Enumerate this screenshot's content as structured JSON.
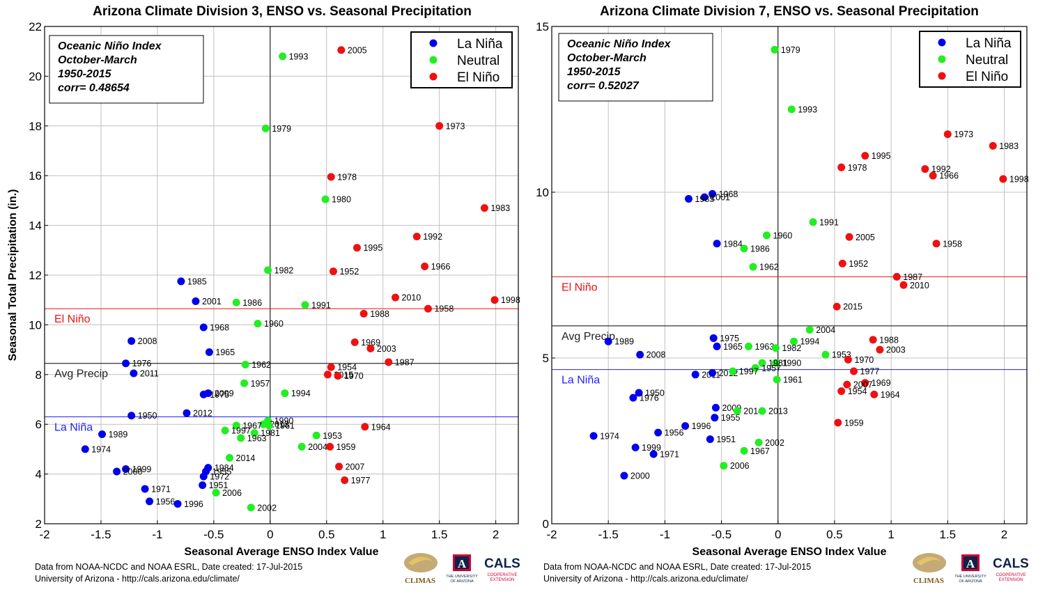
{
  "chart_data": [
    {
      "type": "scatter",
      "title": "Arizona Climate Division 3, ENSO vs. Seasonal Precipitation",
      "xlabel": "Seasonal Average ENSO Index Value",
      "ylabel": "Seasonal Total Precipitation (in.)",
      "xlim": [
        -2,
        2.2
      ],
      "ylim": [
        2,
        22
      ],
      "xticks": [
        "-2",
        "-1.5",
        "-1",
        "-0.5",
        "0",
        "0.5",
        "1",
        "1.5",
        "2"
      ],
      "xtick_values": [
        -2,
        -1.5,
        -1,
        -0.5,
        0,
        0.5,
        1,
        1.5,
        2
      ],
      "yticks": [
        "2",
        "4",
        "6",
        "8",
        "10",
        "12",
        "14",
        "16",
        "18",
        "20",
        "22"
      ],
      "ytick_values": [
        2,
        4,
        6,
        8,
        10,
        12,
        14,
        16,
        18,
        20,
        22
      ],
      "grid": true,
      "info_box": [
        "Oceanic Niño Index",
        "October-March",
        "1950-2015",
        "corr= 0.48654"
      ],
      "legend": {
        "position": "top-right",
        "entries": [
          {
            "name": "La Niña",
            "color": "#0000ee"
          },
          {
            "name": "Neutral",
            "color": "#22ee22"
          },
          {
            "name": "El Niño",
            "color": "#ee1111"
          }
        ]
      },
      "reference_lines": [
        {
          "label": "El Niño",
          "y": 10.65,
          "color": "#ee1111"
        },
        {
          "label": "Avg Precip",
          "y": 8.45,
          "color": "#000000"
        },
        {
          "label": "La Niña",
          "y": 6.3,
          "color": "#2222ee"
        }
      ],
      "series": [
        {
          "name": "La Niña",
          "color": "#0000ee",
          "points": [
            {
              "year": "1985",
              "x": -0.79,
              "y": 11.75
            },
            {
              "year": "2001",
              "x": -0.66,
              "y": 10.95
            },
            {
              "year": "1968",
              "x": -0.59,
              "y": 9.9
            },
            {
              "year": "2008",
              "x": -1.23,
              "y": 9.35
            },
            {
              "year": "1965",
              "x": -0.54,
              "y": 8.9
            },
            {
              "year": "1976",
              "x": -1.28,
              "y": 8.45
            },
            {
              "year": "2011",
              "x": -1.21,
              "y": 8.05
            },
            {
              "year": "2009",
              "x": -0.55,
              "y": 7.25
            },
            {
              "year": "1975",
              "x": -0.59,
              "y": 7.2
            },
            {
              "year": "1950",
              "x": -1.23,
              "y": 6.35
            },
            {
              "year": "2012",
              "x": -0.74,
              "y": 6.45
            },
            {
              "year": "1989",
              "x": -1.49,
              "y": 5.6
            },
            {
              "year": "1974",
              "x": -1.64,
              "y": 5.0
            },
            {
              "year": "1999",
              "x": -1.28,
              "y": 4.2
            },
            {
              "year": "2000",
              "x": -1.36,
              "y": 4.1
            },
            {
              "year": "1984",
              "x": -0.55,
              "y": 4.25
            },
            {
              "year": "1955",
              "x": -0.57,
              "y": 4.1
            },
            {
              "year": "1972",
              "x": -0.59,
              "y": 3.9
            },
            {
              "year": "1951",
              "x": -0.6,
              "y": 3.55
            },
            {
              "year": "1971",
              "x": -1.11,
              "y": 3.4
            },
            {
              "year": "1956",
              "x": -1.07,
              "y": 2.9
            },
            {
              "year": "1996",
              "x": -0.82,
              "y": 2.8
            }
          ]
        },
        {
          "name": "Neutral",
          "color": "#22ee22",
          "points": [
            {
              "year": "1993",
              "x": 0.11,
              "y": 20.8
            },
            {
              "year": "1979",
              "x": -0.04,
              "y": 17.9
            },
            {
              "year": "1980",
              "x": 0.49,
              "y": 15.05
            },
            {
              "year": "1982",
              "x": -0.02,
              "y": 12.2
            },
            {
              "year": "1986",
              "x": -0.3,
              "y": 10.9
            },
            {
              "year": "1991",
              "x": 0.31,
              "y": 10.8
            },
            {
              "year": "1960",
              "x": -0.11,
              "y": 10.05
            },
            {
              "year": "1962",
              "x": -0.22,
              "y": 8.4
            },
            {
              "year": "1957",
              "x": -0.23,
              "y": 7.65
            },
            {
              "year": "1994",
              "x": 0.13,
              "y": 7.25
            },
            {
              "year": "1990",
              "x": -0.02,
              "y": 6.15
            },
            {
              "year": "2013",
              "x": -0.06,
              "y": 6.0
            },
            {
              "year": "1961",
              "x": -0.01,
              "y": 5.95
            },
            {
              "year": "1967",
              "x": -0.3,
              "y": 5.95
            },
            {
              "year": "1997",
              "x": -0.4,
              "y": 5.75
            },
            {
              "year": "1981",
              "x": -0.14,
              "y": 5.65
            },
            {
              "year": "1963",
              "x": -0.26,
              "y": 5.45
            },
            {
              "year": "1953",
              "x": 0.41,
              "y": 5.55
            },
            {
              "year": "2004",
              "x": 0.28,
              "y": 5.1
            },
            {
              "year": "2014",
              "x": -0.36,
              "y": 4.65
            },
            {
              "year": "2006",
              "x": -0.48,
              "y": 3.25
            },
            {
              "year": "2002",
              "x": -0.17,
              "y": 2.65
            }
          ]
        },
        {
          "name": "El Niño",
          "color": "#ee1111",
          "points": [
            {
              "year": "2005",
              "x": 0.63,
              "y": 21.05
            },
            {
              "year": "1973",
              "x": 1.5,
              "y": 18.0
            },
            {
              "year": "1978",
              "x": 0.54,
              "y": 15.95
            },
            {
              "year": "1983",
              "x": 1.9,
              "y": 14.7
            },
            {
              "year": "1992",
              "x": 1.3,
              "y": 13.55
            },
            {
              "year": "1995",
              "x": 0.77,
              "y": 13.1
            },
            {
              "year": "1966",
              "x": 1.37,
              "y": 12.35
            },
            {
              "year": "1952",
              "x": 0.56,
              "y": 12.15
            },
            {
              "year": "2010",
              "x": 1.11,
              "y": 11.1
            },
            {
              "year": "1998",
              "x": 1.99,
              "y": 11.0
            },
            {
              "year": "1958",
              "x": 1.4,
              "y": 10.65
            },
            {
              "year": "1988",
              "x": 0.83,
              "y": 10.45
            },
            {
              "year": "1969",
              "x": 0.75,
              "y": 9.3
            },
            {
              "year": "2003",
              "x": 0.89,
              "y": 9.05
            },
            {
              "year": "1987",
              "x": 1.05,
              "y": 8.5
            },
            {
              "year": "1954",
              "x": 0.54,
              "y": 8.3
            },
            {
              "year": "2015",
              "x": 0.51,
              "y": 8.0
            },
            {
              "year": "1970",
              "x": 0.6,
              "y": 7.95
            },
            {
              "year": "1964",
              "x": 0.84,
              "y": 5.9
            },
            {
              "year": "1959",
              "x": 0.53,
              "y": 5.1
            },
            {
              "year": "2007",
              "x": 0.61,
              "y": 4.3
            },
            {
              "year": "1977",
              "x": 0.66,
              "y": 3.75
            }
          ]
        }
      ]
    },
    {
      "type": "scatter",
      "title": "Arizona Climate Division 7, ENSO vs. Seasonal Precipitation",
      "xlabel": "Seasonal Average ENSO Index Value",
      "ylabel": "",
      "xlim": [
        -2,
        2.2
      ],
      "ylim": [
        0,
        15
      ],
      "xticks": [
        "-2",
        "-1.5",
        "-1",
        "-0.5",
        "0",
        "0.5",
        "1",
        "1.5",
        "2"
      ],
      "xtick_values": [
        -2,
        -1.5,
        -1,
        -0.5,
        0,
        0.5,
        1,
        1.5,
        2
      ],
      "yticks": [
        "0",
        "5",
        "10",
        "15"
      ],
      "ytick_values": [
        0,
        5,
        10,
        15
      ],
      "grid": true,
      "info_box": [
        "Oceanic Niño Index",
        "October-March",
        "1950-2015",
        "corr= 0.52027"
      ],
      "legend": {
        "position": "top-right",
        "entries": [
          {
            "name": "La Niña",
            "color": "#0000ee"
          },
          {
            "name": "Neutral",
            "color": "#22ee22"
          },
          {
            "name": "El Niño",
            "color": "#ee1111"
          }
        ]
      },
      "reference_lines": [
        {
          "label": "El Niño",
          "y": 7.45,
          "color": "#ee1111"
        },
        {
          "label": "Avg Precip",
          "y": 5.97,
          "color": "#000000"
        },
        {
          "label": "La Niña",
          "y": 4.65,
          "color": "#2222ee"
        }
      ],
      "series": [
        {
          "name": "La Niña",
          "color": "#0000ee",
          "points": [
            {
              "year": "1968",
              "x": -0.58,
              "y": 9.95
            },
            {
              "year": "2001",
              "x": -0.65,
              "y": 9.85
            },
            {
              "year": "1985",
              "x": -0.79,
              "y": 9.8
            },
            {
              "year": "1984",
              "x": -0.54,
              "y": 8.45
            },
            {
              "year": "1975",
              "x": -0.57,
              "y": 5.6
            },
            {
              "year": "1989",
              "x": -1.5,
              "y": 5.5
            },
            {
              "year": "1965",
              "x": -0.54,
              "y": 5.35
            },
            {
              "year": "2008",
              "x": -1.22,
              "y": 5.1
            },
            {
              "year": "2011",
              "x": -0.73,
              "y": 4.5
            },
            {
              "year": "2012",
              "x": -0.58,
              "y": 4.55
            },
            {
              "year": "1950",
              "x": -1.23,
              "y": 3.95
            },
            {
              "year": "1976",
              "x": -1.28,
              "y": 3.8
            },
            {
              "year": "2009",
              "x": -0.55,
              "y": 3.5
            },
            {
              "year": "1955",
              "x": -0.56,
              "y": 3.2
            },
            {
              "year": "1996",
              "x": -0.82,
              "y": 2.95
            },
            {
              "year": "1956",
              "x": -1.06,
              "y": 2.75
            },
            {
              "year": "1974",
              "x": -1.63,
              "y": 2.65
            },
            {
              "year": "1951",
              "x": -0.6,
              "y": 2.55
            },
            {
              "year": "1999",
              "x": -1.26,
              "y": 2.3
            },
            {
              "year": "1971",
              "x": -1.1,
              "y": 2.1
            },
            {
              "year": "2000",
              "x": -1.36,
              "y": 1.45
            }
          ]
        },
        {
          "name": "Neutral",
          "color": "#22ee22",
          "points": [
            {
              "year": "1979",
              "x": -0.03,
              "y": 14.3
            },
            {
              "year": "1993",
              "x": 0.12,
              "y": 12.5
            },
            {
              "year": "1991",
              "x": 0.31,
              "y": 9.1
            },
            {
              "year": "1960",
              "x": -0.1,
              "y": 8.7
            },
            {
              "year": "1986",
              "x": -0.3,
              "y": 8.3
            },
            {
              "year": "1962",
              "x": -0.22,
              "y": 7.75
            },
            {
              "year": "2004",
              "x": 0.28,
              "y": 5.85
            },
            {
              "year": "1994",
              "x": 0.14,
              "y": 5.5
            },
            {
              "year": "1963",
              "x": -0.26,
              "y": 5.35
            },
            {
              "year": "1982",
              "x": -0.02,
              "y": 5.3
            },
            {
              "year": "1953",
              "x": 0.42,
              "y": 5.1
            },
            {
              "year": "1990",
              "x": -0.02,
              "y": 4.85
            },
            {
              "year": "1981",
              "x": -0.14,
              "y": 4.85
            },
            {
              "year": "1957",
              "x": -0.2,
              "y": 4.7
            },
            {
              "year": "1997",
              "x": -0.4,
              "y": 4.6
            },
            {
              "year": "1961",
              "x": -0.01,
              "y": 4.35
            },
            {
              "year": "2014",
              "x": -0.36,
              "y": 3.4
            },
            {
              "year": "2013",
              "x": -0.14,
              "y": 3.4
            },
            {
              "year": "2002",
              "x": -0.17,
              "y": 2.45
            },
            {
              "year": "1967",
              "x": -0.3,
              "y": 2.2
            },
            {
              "year": "2006",
              "x": -0.48,
              "y": 1.75
            }
          ]
        },
        {
          "name": "El Niño",
          "color": "#ee1111",
          "points": [
            {
              "year": "1973",
              "x": 1.5,
              "y": 11.75
            },
            {
              "year": "1983",
              "x": 1.9,
              "y": 11.4
            },
            {
              "year": "1995",
              "x": 0.77,
              "y": 11.1
            },
            {
              "year": "1978",
              "x": 0.56,
              "y": 10.75
            },
            {
              "year": "1992",
              "x": 1.3,
              "y": 10.7
            },
            {
              "year": "1966",
              "x": 1.37,
              "y": 10.5
            },
            {
              "year": "1998",
              "x": 1.99,
              "y": 10.4
            },
            {
              "year": "2005",
              "x": 0.63,
              "y": 8.65
            },
            {
              "year": "1958",
              "x": 1.4,
              "y": 8.45
            },
            {
              "year": "1952",
              "x": 0.57,
              "y": 7.85
            },
            {
              "year": "1987",
              "x": 1.05,
              "y": 7.45
            },
            {
              "year": "2010",
              "x": 1.11,
              "y": 7.2
            },
            {
              "year": "2015",
              "x": 0.52,
              "y": 6.55
            },
            {
              "year": "1988",
              "x": 0.84,
              "y": 5.55
            },
            {
              "year": "2003",
              "x": 0.9,
              "y": 5.25
            },
            {
              "year": "1970",
              "x": 0.62,
              "y": 4.95
            },
            {
              "year": "1977",
              "x": 0.67,
              "y": 4.6
            },
            {
              "year": "1969",
              "x": 0.77,
              "y": 4.25
            },
            {
              "year": "2007",
              "x": 0.61,
              "y": 4.2
            },
            {
              "year": "1954",
              "x": 0.56,
              "y": 4.0
            },
            {
              "year": "1964",
              "x": 0.85,
              "y": 3.9
            },
            {
              "year": "1959",
              "x": 0.53,
              "y": 3.05
            }
          ]
        }
      ]
    }
  ],
  "footer": {
    "line1": "Data from NOAA-NCDC and NOAA ESRL, Date created: 17-Jul-2015",
    "line2": "University of Arizona - http://cals.arizona.edu/climate/"
  },
  "logos": {
    "climas": "CLIMAS",
    "ua_letter": "A",
    "ua_line1": "THE UNIVERSITY",
    "ua_line2": "OF ARIZONA",
    "cals": "CALS",
    "cals_line1": "COOPERATIVE",
    "cals_line2": "EXTENSION"
  }
}
